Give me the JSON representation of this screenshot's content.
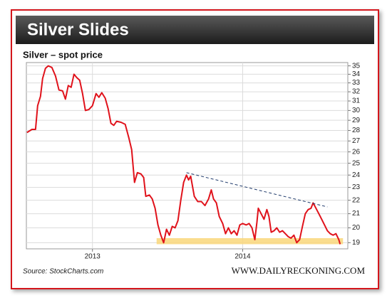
{
  "chart_data": {
    "type": "line",
    "title": "Silver Slides",
    "subtitle": "Silver – spot price",
    "source": "Source: StockCharts.com",
    "credit": "WWW.DAILYRECKONING.COM",
    "log_scale": true,
    "grid": true,
    "xlim": [
      2012.56,
      2014.7
    ],
    "xticks": [
      2013,
      2014
    ],
    "ylim": [
      18.6,
      35.4
    ],
    "yticks": [
      19,
      20,
      21,
      22,
      23,
      24,
      25,
      26,
      27,
      28,
      29,
      30,
      31,
      32,
      33,
      34,
      35
    ],
    "x": [
      2012.564,
      2012.597,
      2012.621,
      2012.635,
      2012.654,
      2012.668,
      2012.687,
      2012.706,
      2012.73,
      2012.754,
      2012.777,
      2012.801,
      2012.82,
      2012.839,
      2012.858,
      2012.877,
      2012.896,
      2012.915,
      2012.934,
      2012.953,
      2012.976,
      2013.0,
      2013.024,
      2013.043,
      2013.062,
      2013.085,
      2013.104,
      2013.123,
      2013.142,
      2013.161,
      2013.19,
      2013.218,
      2013.242,
      2013.261,
      2013.28,
      2013.299,
      2013.322,
      2013.341,
      2013.355,
      2013.379,
      2013.398,
      2013.417,
      2013.436,
      2013.455,
      2013.474,
      2013.493,
      2013.512,
      2013.531,
      2013.55,
      2013.569,
      2013.588,
      2013.607,
      2013.626,
      2013.64,
      2013.654,
      2013.678,
      2013.701,
      2013.725,
      2013.749,
      2013.773,
      2013.791,
      2013.806,
      2013.825,
      2013.844,
      2013.867,
      2013.886,
      2013.905,
      2013.924,
      2013.943,
      2013.962,
      2013.981,
      2014.0,
      2014.024,
      2014.043,
      2014.062,
      2014.081,
      2014.095,
      2014.104,
      2014.123,
      2014.142,
      2014.161,
      2014.175,
      2014.19,
      2014.209,
      2014.227,
      2014.246,
      2014.265,
      2014.284,
      2014.303,
      2014.322,
      2014.341,
      2014.36,
      2014.379,
      2014.398,
      2014.417,
      2014.436,
      2014.455,
      2014.469,
      2014.488,
      2014.507,
      2014.526,
      2014.545,
      2014.564,
      2014.583,
      2014.602,
      2014.621,
      2014.64,
      2014.649
    ],
    "series": [
      {
        "name": "Silver",
        "color": "#e0121b",
        "values": [
          27.8,
          28.1,
          28.1,
          30.5,
          31.5,
          33.5,
          34.7,
          35.0,
          34.8,
          33.8,
          32.2,
          32.1,
          31.2,
          32.7,
          32.5,
          34.0,
          33.6,
          33.3,
          31.8,
          30.0,
          30.1,
          30.5,
          31.8,
          31.4,
          31.9,
          31.3,
          30.2,
          28.7,
          28.5,
          28.9,
          28.8,
          28.6,
          27.3,
          26.2,
          23.4,
          24.2,
          24.1,
          23.8,
          22.3,
          22.4,
          22.1,
          21.4,
          20.2,
          19.5,
          19.0,
          19.9,
          19.5,
          20.1,
          20.0,
          20.5,
          22.0,
          23.4,
          24.0,
          23.6,
          23.9,
          22.3,
          21.9,
          21.9,
          21.6,
          22.1,
          22.8,
          22.1,
          21.8,
          20.8,
          20.3,
          19.6,
          20.0,
          19.6,
          19.8,
          19.5,
          20.2,
          20.3,
          20.2,
          20.3,
          20.0,
          19.2,
          20.4,
          21.4,
          21.0,
          20.6,
          21.3,
          20.8,
          19.7,
          19.8,
          20.0,
          19.7,
          19.8,
          19.6,
          19.4,
          19.3,
          19.5,
          19.0,
          19.2,
          20.1,
          21.0,
          21.3,
          21.4,
          21.8,
          21.4,
          21.0,
          20.6,
          20.2,
          19.8,
          19.6,
          19.5,
          19.6,
          19.2,
          18.9
        ]
      }
    ],
    "trendline": {
      "color": "#1f3a6b",
      "x": [
        2013.626,
        2014.564
      ],
      "y": [
        24.2,
        21.5
      ]
    },
    "band": {
      "color": "#f9d77a",
      "x": [
        2013.427,
        2014.668
      ],
      "y": [
        18.9,
        19.3
      ]
    }
  }
}
